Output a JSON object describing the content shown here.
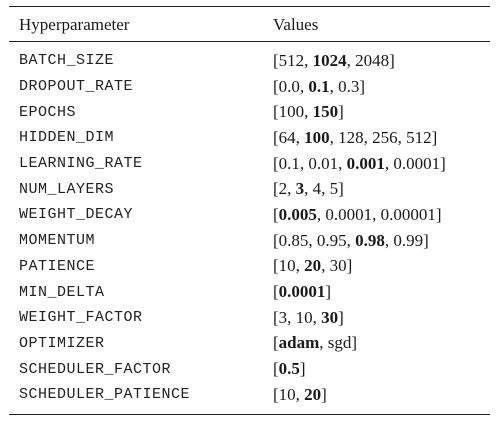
{
  "table": {
    "headers": [
      "Hyperparameter",
      "Values"
    ],
    "rows": [
      {
        "name": "BATCH_SIZE",
        "values": [
          "512",
          "1024",
          "2048"
        ],
        "bold": [
          1
        ]
      },
      {
        "name": "DROPOUT_RATE",
        "values": [
          "0.0",
          "0.1",
          "0.3"
        ],
        "bold": [
          1
        ]
      },
      {
        "name": "EPOCHS",
        "values": [
          "100",
          "150"
        ],
        "bold": [
          1
        ]
      },
      {
        "name": "HIDDEN_DIM",
        "values": [
          "64",
          "100",
          "128",
          "256",
          "512"
        ],
        "bold": [
          1
        ]
      },
      {
        "name": "LEARNING_RATE",
        "values": [
          "0.1",
          "0.01",
          "0.001",
          "0.0001"
        ],
        "bold": [
          2
        ]
      },
      {
        "name": "NUM_LAYERS",
        "values": [
          "2",
          "3",
          "4",
          "5"
        ],
        "bold": [
          1
        ]
      },
      {
        "name": "WEIGHT_DECAY",
        "values": [
          "0.005",
          "0.0001",
          "0.00001"
        ],
        "bold": [
          0
        ]
      },
      {
        "name": "MOMENTUM",
        "values": [
          "0.85",
          "0.95",
          "0.98",
          "0.99"
        ],
        "bold": [
          2
        ]
      },
      {
        "name": "PATIENCE",
        "values": [
          "10",
          "20",
          "30"
        ],
        "bold": [
          1
        ]
      },
      {
        "name": "MIN_DELTA",
        "values": [
          "0.0001"
        ],
        "bold": [
          0
        ]
      },
      {
        "name": "WEIGHT_FACTOR",
        "values": [
          "3",
          "10",
          "30"
        ],
        "bold": [
          2
        ]
      },
      {
        "name": "OPTIMIZER",
        "values": [
          "adam",
          "sgd"
        ],
        "bold": [
          0
        ]
      },
      {
        "name": "SCHEDULER_FACTOR",
        "values": [
          "0.5"
        ],
        "bold": [
          0
        ]
      },
      {
        "name": "SCHEDULER_PATIENCE",
        "values": [
          "10",
          "20"
        ],
        "bold": [
          1
        ]
      }
    ]
  }
}
